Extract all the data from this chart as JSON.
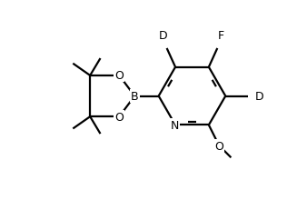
{
  "bg_color": "#ffffff",
  "line_color": "#000000",
  "line_width": 1.6,
  "font_size": 9,
  "figsize": [
    3.38,
    2.32
  ],
  "dpi": 100,
  "xlim": [
    -0.5,
    1.05
  ],
  "ylim": [
    -0.15,
    1.05
  ]
}
